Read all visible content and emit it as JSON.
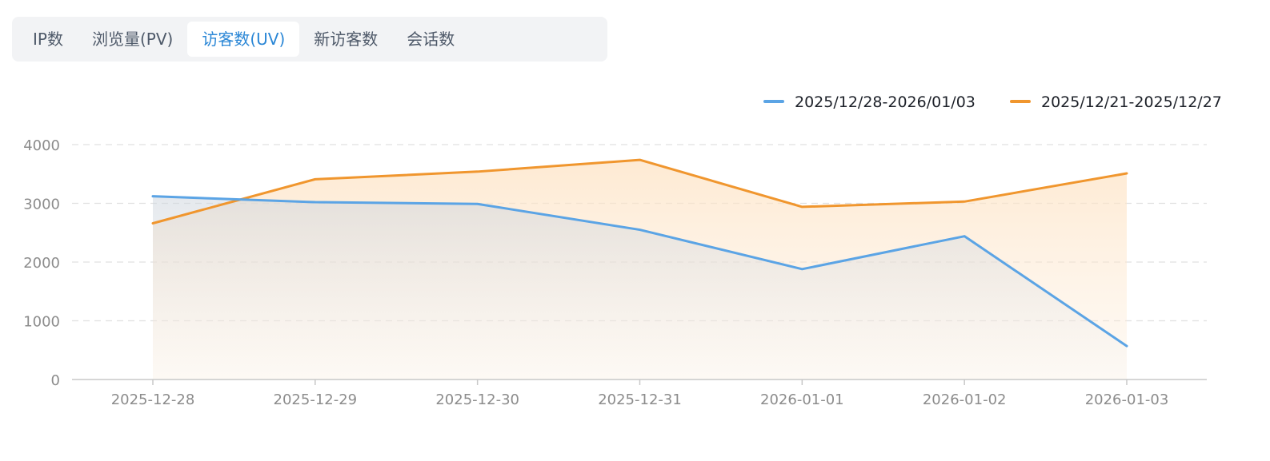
{
  "tabs": [
    {
      "label": "IP数",
      "active": false
    },
    {
      "label": "浏览量(PV)",
      "active": false
    },
    {
      "label": "访客数(UV)",
      "active": true
    },
    {
      "label": "新访客数",
      "active": false
    },
    {
      "label": "会话数",
      "active": false
    }
  ],
  "colors": {
    "current": "#5ba4e5",
    "previous": "#f0962e",
    "active_tab": "#2b87d6",
    "grid": "#e0e0e0",
    "axis_text": "#8c8c8c"
  },
  "chart_data": {
    "type": "line",
    "title": "",
    "xlabel": "",
    "ylabel": "",
    "categories": [
      "2025-12-28",
      "2025-12-29",
      "2025-12-30",
      "2025-12-31",
      "2026-01-01",
      "2026-01-02",
      "2026-01-03"
    ],
    "series": [
      {
        "name": "2025/12/28-2026/01/03",
        "color": "#5ba4e5",
        "values": [
          3120,
          3020,
          2990,
          2550,
          1880,
          2440,
          570
        ]
      },
      {
        "name": "2025/12/21-2025/12/27",
        "color": "#f0962e",
        "values": [
          2660,
          3410,
          3540,
          3740,
          2940,
          3030,
          3510
        ]
      }
    ],
    "ylim": [
      0,
      4000
    ],
    "yticks": [
      0,
      1000,
      2000,
      3000,
      4000
    ],
    "grid": true,
    "legend_position": "top-right"
  }
}
